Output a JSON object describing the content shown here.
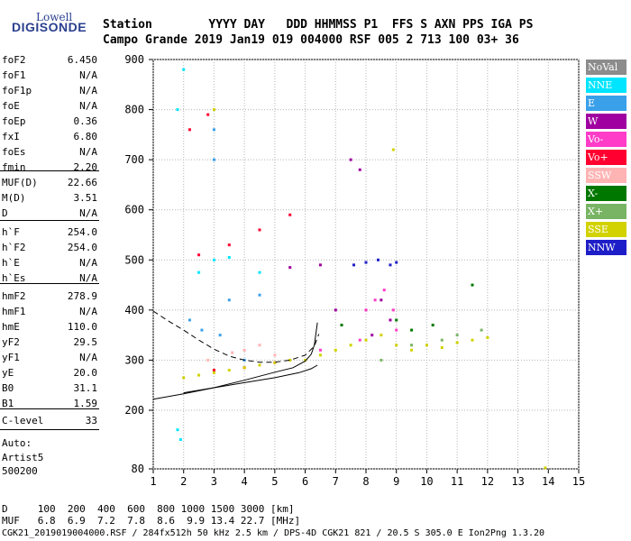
{
  "logo": {
    "top": "Lowell",
    "bottom": "DIGISONDE"
  },
  "header": {
    "row1": "Station        YYYY DAY   DDD HHMMSS P1  FFS S AXN PPS IGA PS",
    "row2": "Campo Grande 2019 Jan19 019 004000 RSF 005 2 713 100 03+ 36"
  },
  "params_group1": [
    {
      "k": "foF2",
      "v": "6.450"
    },
    {
      "k": "foF1",
      "v": "N/A"
    },
    {
      "k": "foF1p",
      "v": "N/A"
    },
    {
      "k": "foE",
      "v": "N/A"
    },
    {
      "k": "foEp",
      "v": "0.36"
    },
    {
      "k": "fxI",
      "v": "6.80"
    },
    {
      "k": "foEs",
      "v": "N/A"
    },
    {
      "k": "fmin",
      "v": "2.20"
    }
  ],
  "params_group2": [
    {
      "k": "MUF(D)",
      "v": "22.66"
    },
    {
      "k": "M(D)",
      "v": "3.51"
    },
    {
      "k": "D",
      "v": "N/A"
    }
  ],
  "params_group3": [
    {
      "k": "h`F",
      "v": "254.0"
    },
    {
      "k": "h`F2",
      "v": "254.0"
    },
    {
      "k": "h`E",
      "v": "N/A"
    },
    {
      "k": "h`Es",
      "v": "N/A"
    }
  ],
  "params_group4": [
    {
      "k": "hmF2",
      "v": "278.9"
    },
    {
      "k": "hmF1",
      "v": "N/A"
    },
    {
      "k": "hmE",
      "v": "110.0"
    },
    {
      "k": "yF2",
      "v": "29.5"
    },
    {
      "k": "yF1",
      "v": "N/A"
    },
    {
      "k": "yE",
      "v": "20.0"
    },
    {
      "k": "B0",
      "v": "31.1"
    },
    {
      "k": "B1",
      "v": "1.59"
    }
  ],
  "params_group5": [
    {
      "k": "C-level",
      "v": "33"
    }
  ],
  "auto": {
    "line1": "Auto:",
    "line2": "Artist5",
    "line3": "500200"
  },
  "legend": [
    {
      "label": "NoVal",
      "color": "#8c8c8c"
    },
    {
      "label": "NNE",
      "color": "#00e5ff"
    },
    {
      "label": "E",
      "color": "#3aa0ea"
    },
    {
      "label": "W",
      "color": "#a000a0"
    },
    {
      "label": "Vo-",
      "color": "#ff3cc8"
    },
    {
      "label": "Vo+",
      "color": "#ff0030"
    },
    {
      "label": "SSW",
      "color": "#ffb4b4"
    },
    {
      "label": "X-",
      "color": "#007800"
    },
    {
      "label": "X+",
      "color": "#78b464"
    },
    {
      "label": "SSE",
      "color": "#d2d200"
    },
    {
      "label": "NNW",
      "color": "#1e1ec8"
    }
  ],
  "chart_data": {
    "type": "scatter",
    "xlabel": "",
    "ylabel": "",
    "xlim": [
      1,
      15
    ],
    "ylim": [
      80,
      900
    ],
    "x_ticks": [
      1,
      2,
      3,
      4,
      5,
      6,
      7,
      8,
      9,
      10,
      11,
      12,
      13,
      14,
      15
    ],
    "y_ticks": [
      80,
      200,
      300,
      400,
      500,
      600,
      700,
      800,
      900
    ],
    "grid": true,
    "legend_position": "right",
    "profile_curve": [
      [
        1.0,
        222
      ],
      [
        2,
        233
      ],
      [
        3,
        245
      ],
      [
        4,
        260
      ],
      [
        5,
        276
      ],
      [
        5.6,
        285
      ],
      [
        6.0,
        298
      ],
      [
        6.2,
        312
      ],
      [
        6.3,
        330
      ],
      [
        6.35,
        352
      ],
      [
        6.4,
        375
      ]
    ],
    "profile_lower": [
      [
        2,
        235
      ],
      [
        3,
        245
      ],
      [
        4,
        255
      ],
      [
        5,
        265
      ],
      [
        5.8,
        275
      ],
      [
        6.2,
        283
      ],
      [
        6.4,
        290
      ]
    ],
    "dashed_upper": [
      [
        1.0,
        398
      ],
      [
        1.5,
        378
      ],
      [
        2,
        360
      ],
      [
        2.5,
        340
      ],
      [
        3,
        322
      ],
      [
        3.5,
        308
      ],
      [
        4,
        300
      ],
      [
        4.5,
        296
      ],
      [
        5,
        296
      ],
      [
        5.5,
        300
      ],
      [
        6,
        310
      ],
      [
        6.3,
        328
      ],
      [
        6.45,
        352
      ]
    ],
    "series": [
      {
        "name": "NNE",
        "points": [
          [
            1.8,
            800
          ],
          [
            2.0,
            880
          ],
          [
            1.8,
            160
          ],
          [
            1.9,
            140
          ],
          [
            3.0,
            500
          ],
          [
            3.5,
            505
          ],
          [
            2.5,
            475
          ],
          [
            4.5,
            475
          ]
        ]
      },
      {
        "name": "E",
        "points": [
          [
            3.0,
            700
          ],
          [
            3.0,
            760
          ],
          [
            2.2,
            380
          ],
          [
            2.6,
            360
          ],
          [
            3.2,
            350
          ],
          [
            4.0,
            300
          ],
          [
            3.5,
            420
          ],
          [
            4.5,
            430
          ]
        ]
      },
      {
        "name": "W",
        "points": [
          [
            7.5,
            700
          ],
          [
            7.8,
            680
          ],
          [
            8.5,
            420
          ],
          [
            8.8,
            380
          ],
          [
            8.2,
            350
          ],
          [
            7.0,
            400
          ],
          [
            5.5,
            485
          ],
          [
            6.5,
            490
          ]
        ]
      },
      {
        "name": "Vo-",
        "points": [
          [
            8.0,
            400
          ],
          [
            8.3,
            420
          ],
          [
            8.6,
            440
          ],
          [
            8.9,
            400
          ],
          [
            9.0,
            360
          ],
          [
            7.8,
            340
          ],
          [
            6.5,
            320
          ]
        ]
      },
      {
        "name": "Vo+",
        "points": [
          [
            2.5,
            510
          ],
          [
            3.5,
            530
          ],
          [
            4.5,
            560
          ],
          [
            5.5,
            590
          ],
          [
            2.2,
            760
          ],
          [
            2.8,
            790
          ],
          [
            3.0,
            280
          ],
          [
            4.0,
            285
          ],
          [
            5.0,
            295
          ]
        ]
      },
      {
        "name": "SSW",
        "points": [
          [
            4.5,
            330
          ],
          [
            4.0,
            320
          ],
          [
            5.0,
            310
          ],
          [
            2.8,
            300
          ],
          [
            3.6,
            315
          ]
        ]
      },
      {
        "name": "X-",
        "points": [
          [
            9.5,
            360
          ],
          [
            10.2,
            370
          ],
          [
            11.5,
            450
          ],
          [
            9.0,
            380
          ],
          [
            7.2,
            370
          ]
        ]
      },
      {
        "name": "X+",
        "points": [
          [
            8.5,
            300
          ],
          [
            9.5,
            330
          ],
          [
            10.5,
            340
          ],
          [
            11.0,
            350
          ],
          [
            11.8,
            360
          ]
        ]
      },
      {
        "name": "SSE",
        "points": [
          [
            7.0,
            320
          ],
          [
            7.5,
            330
          ],
          [
            8.0,
            340
          ],
          [
            8.5,
            350
          ],
          [
            9.0,
            330
          ],
          [
            9.5,
            320
          ],
          [
            10.0,
            330
          ],
          [
            10.5,
            325
          ],
          [
            11.0,
            335
          ],
          [
            11.5,
            340
          ],
          [
            12.0,
            345
          ],
          [
            6.5,
            310
          ],
          [
            6.0,
            300
          ],
          [
            5.5,
            300
          ],
          [
            5.0,
            295
          ],
          [
            4.5,
            290
          ],
          [
            4.0,
            285
          ],
          [
            3.5,
            280
          ],
          [
            3.0,
            275
          ],
          [
            2.5,
            270
          ],
          [
            2.0,
            265
          ],
          [
            3.0,
            800
          ],
          [
            8.9,
            720
          ],
          [
            13.9,
            82
          ]
        ]
      },
      {
        "name": "NNW",
        "points": [
          [
            7.6,
            490
          ],
          [
            8.0,
            495
          ],
          [
            8.4,
            500
          ],
          [
            8.8,
            490
          ],
          [
            9.0,
            495
          ]
        ]
      }
    ]
  },
  "footer": {
    "line1": "D     100  200  400  600  800 1000 1500 3000 [km]",
    "line2": "MUF   6.8  6.9  7.2  7.8  8.6  9.9 13.4 22.7 [MHz]",
    "line3": "CGK21_2019019004000.RSF / 284fx512h 50 kHz 2.5 km / DPS-4D CGK21 821 / 20.5 S 305.0 E Ion2Png 1.3.20"
  }
}
